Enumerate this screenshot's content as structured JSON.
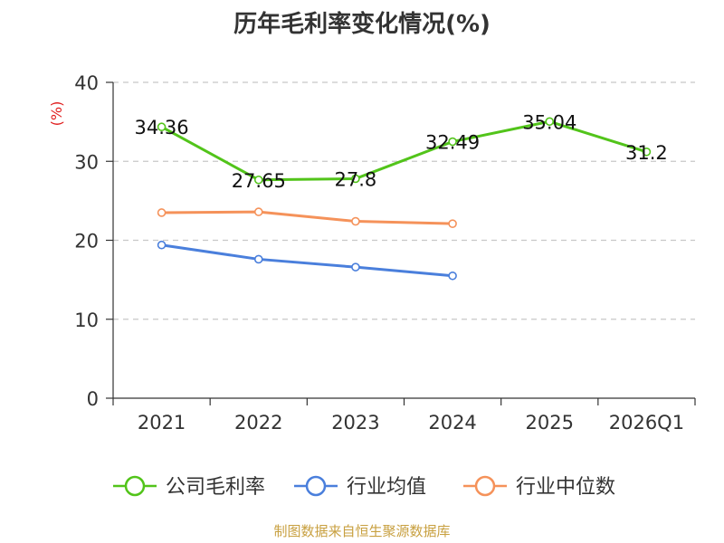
{
  "chart_data": {
    "type": "line",
    "title": "历年毛利率变化情况(%)",
    "ylabel": "(%)",
    "categories": [
      "2021",
      "2022",
      "2023",
      "2024",
      "2025",
      "2026Q1"
    ],
    "ylim": [
      0,
      40
    ],
    "yticks": [
      0,
      10,
      20,
      30,
      40
    ],
    "grid": true,
    "legend_position": "bottom",
    "series": [
      {
        "name": "公司毛利率",
        "color": "#52c41a",
        "values": [
          34.36,
          27.65,
          27.8,
          32.49,
          35.04,
          31.2
        ],
        "labels": [
          "34.36",
          "27.65",
          "27.8",
          "32.49",
          "35.04",
          "31.2"
        ]
      },
      {
        "name": "行业均值",
        "color": "#4a7fdc",
        "values": [
          19.4,
          17.6,
          16.6,
          15.5,
          null,
          null
        ]
      },
      {
        "name": "行业中位数",
        "color": "#f5925a",
        "values": [
          23.5,
          23.6,
          22.4,
          22.1,
          null,
          null
        ]
      }
    ]
  },
  "source_note": "制图数据来自恒生聚源数据库"
}
